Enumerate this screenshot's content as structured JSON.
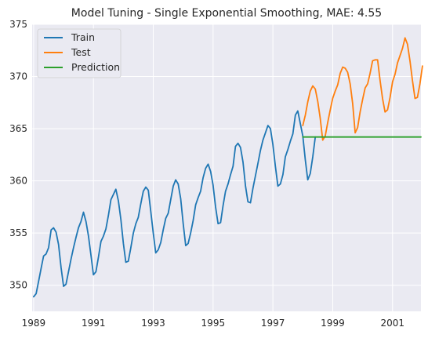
{
  "chart_data": {
    "type": "line",
    "title": "Model Tuning - Single Exponential Smoothing, MAE: 4.55",
    "xlabel": "",
    "ylabel": "",
    "xlim": [
      1988.95,
      2001.95
    ],
    "ylim": [
      347.5,
      375
    ],
    "xticks": [
      1989,
      1991,
      1993,
      1995,
      1997,
      1999,
      2001
    ],
    "yticks": [
      350,
      355,
      360,
      365,
      370,
      375
    ],
    "grid": true,
    "legend_position": "top-left",
    "series": [
      {
        "name": "Train",
        "color": "#1f77b4",
        "x_start": 1989.0,
        "x_step": 0.083333,
        "values": [
          348.9,
          349.2,
          350.4,
          351.6,
          352.8,
          353.0,
          353.6,
          355.3,
          355.5,
          355.1,
          353.9,
          351.7,
          349.9,
          350.1,
          351.3,
          352.5,
          353.6,
          354.6,
          355.5,
          356.1,
          357.0,
          356.1,
          354.7,
          352.9,
          351.0,
          351.3,
          352.7,
          354.2,
          354.7,
          355.4,
          356.7,
          358.2,
          358.7,
          359.2,
          358.1,
          356.3,
          354.0,
          352.2,
          352.3,
          353.6,
          355.0,
          355.9,
          356.5,
          357.8,
          359.0,
          359.4,
          359.1,
          357.1,
          355.0,
          353.1,
          353.4,
          354.1,
          355.3,
          356.4,
          356.9,
          358.2,
          359.5,
          360.1,
          359.7,
          358.3,
          355.9,
          353.8,
          354.0,
          355.0,
          356.2,
          357.7,
          358.4,
          359.0,
          360.3,
          361.2,
          361.6,
          360.9,
          359.6,
          357.5,
          355.9,
          356.0,
          357.6,
          359.0,
          359.7,
          360.6,
          361.4,
          363.3,
          363.6,
          363.2,
          361.8,
          359.5,
          358.0,
          357.9,
          359.3,
          360.5,
          361.7,
          362.9,
          363.9,
          364.6,
          365.3,
          365.0,
          363.5,
          361.4,
          359.5,
          359.7,
          360.6,
          362.3,
          363.0,
          363.8,
          364.5,
          366.3,
          366.7,
          365.5,
          364.3,
          362.0,
          360.1,
          360.7,
          362.3,
          364.2
        ]
      },
      {
        "name": "Test",
        "color": "#ff7f0e",
        "x_start": 1998.0,
        "x_step": 0.083333,
        "values": [
          365.3,
          366.3,
          367.6,
          368.6,
          369.1,
          368.8,
          367.6,
          366.0,
          363.9,
          364.3,
          365.6,
          366.8,
          367.9,
          368.6,
          369.2,
          370.3,
          370.9,
          370.8,
          370.4,
          369.3,
          367.4,
          364.6,
          365.1,
          366.6,
          367.8,
          368.9,
          369.3,
          370.3,
          371.5,
          371.6,
          371.6,
          369.6,
          367.9,
          366.6,
          366.8,
          368.0,
          369.5,
          370.2,
          371.3,
          372.0,
          372.7,
          373.7,
          373.1,
          371.5,
          369.6,
          367.9,
          368.0,
          369.3,
          371.0
        ]
      },
      {
        "name": "Prediction",
        "color": "#2ca02c",
        "x": [
          1998.0,
          2001.95
        ],
        "values": [
          364.2,
          364.2
        ]
      }
    ]
  }
}
